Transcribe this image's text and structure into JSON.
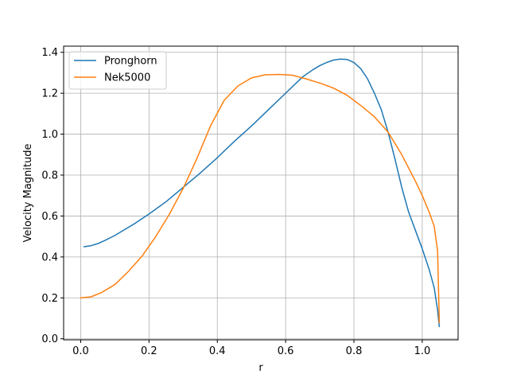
{
  "chart_data": {
    "type": "line",
    "title": "",
    "xlabel": "r",
    "ylabel": "Velocity Magnitude",
    "xlim": [
      -0.05,
      1.105
    ],
    "ylim": [
      -0.005,
      1.43
    ],
    "xticks": [
      0.0,
      0.2,
      0.4,
      0.6,
      0.8,
      1.0
    ],
    "xtick_labels": [
      "0.0",
      "0.2",
      "0.4",
      "0.6",
      "0.8",
      "1.0"
    ],
    "yticks": [
      0.0,
      0.2,
      0.4,
      0.6,
      0.8,
      1.0,
      1.2,
      1.4
    ],
    "ytick_labels": [
      "0.0",
      "0.2",
      "0.4",
      "0.6",
      "0.8",
      "1.0",
      "1.2",
      "1.4"
    ],
    "grid": true,
    "legend_position": "top-left",
    "series": [
      {
        "name": "Pronghorn",
        "color": "#1f77b4",
        "x": [
          0.01,
          0.03,
          0.05,
          0.07,
          0.1,
          0.13,
          0.16,
          0.2,
          0.25,
          0.3,
          0.35,
          0.4,
          0.45,
          0.5,
          0.55,
          0.6,
          0.65,
          0.68,
          0.7,
          0.72,
          0.74,
          0.76,
          0.78,
          0.8,
          0.82,
          0.84,
          0.86,
          0.88,
          0.9,
          0.92,
          0.94,
          0.96,
          0.98,
          1.0,
          1.02,
          1.035,
          1.045,
          1.05
        ],
        "y": [
          0.45,
          0.455,
          0.465,
          0.48,
          0.505,
          0.535,
          0.565,
          0.61,
          0.67,
          0.74,
          0.81,
          0.885,
          0.965,
          1.04,
          1.12,
          1.2,
          1.28,
          1.315,
          1.335,
          1.35,
          1.362,
          1.367,
          1.365,
          1.35,
          1.32,
          1.27,
          1.2,
          1.12,
          1.01,
          0.88,
          0.74,
          0.62,
          0.53,
          0.44,
          0.34,
          0.25,
          0.14,
          0.06
        ]
      },
      {
        "name": "Nek5000",
        "color": "#ff7f0e",
        "x": [
          0.0,
          0.03,
          0.06,
          0.1,
          0.14,
          0.18,
          0.22,
          0.26,
          0.3,
          0.34,
          0.38,
          0.42,
          0.46,
          0.5,
          0.54,
          0.58,
          0.62,
          0.66,
          0.7,
          0.74,
          0.78,
          0.82,
          0.86,
          0.9,
          0.94,
          0.98,
          1.0,
          1.02,
          1.035,
          1.045,
          1.05
        ],
        "y": [
          0.2,
          0.205,
          0.225,
          0.265,
          0.33,
          0.405,
          0.5,
          0.61,
          0.735,
          0.88,
          1.04,
          1.165,
          1.235,
          1.275,
          1.29,
          1.292,
          1.288,
          1.27,
          1.25,
          1.225,
          1.19,
          1.14,
          1.085,
          1.01,
          0.9,
          0.77,
          0.7,
          0.62,
          0.55,
          0.43,
          0.08
        ]
      }
    ]
  }
}
